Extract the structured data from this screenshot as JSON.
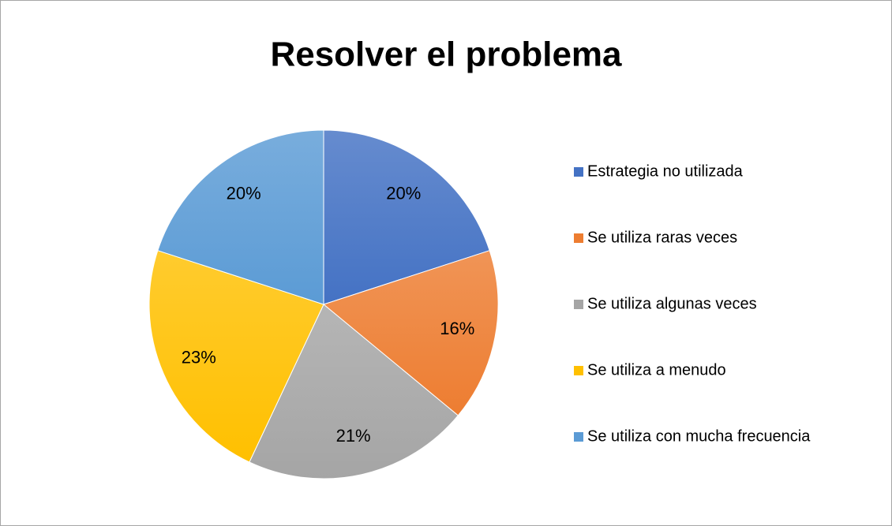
{
  "chart_data": {
    "type": "pie",
    "title": "Resolver el problema",
    "categories": [
      "Estrategia no utilizada",
      "Se utiliza raras veces",
      "Se utiliza algunas veces",
      "Se utiliza a menudo",
      "Se utiliza con mucha frecuencia"
    ],
    "values": [
      20,
      16,
      21,
      23,
      20
    ],
    "value_labels": [
      "20%",
      "16%",
      "21%",
      "23%",
      "20%"
    ],
    "colors": [
      "#4472c4",
      "#ed7d31",
      "#a5a5a5",
      "#ffc000",
      "#5b9bd5"
    ],
    "legend": "right"
  }
}
